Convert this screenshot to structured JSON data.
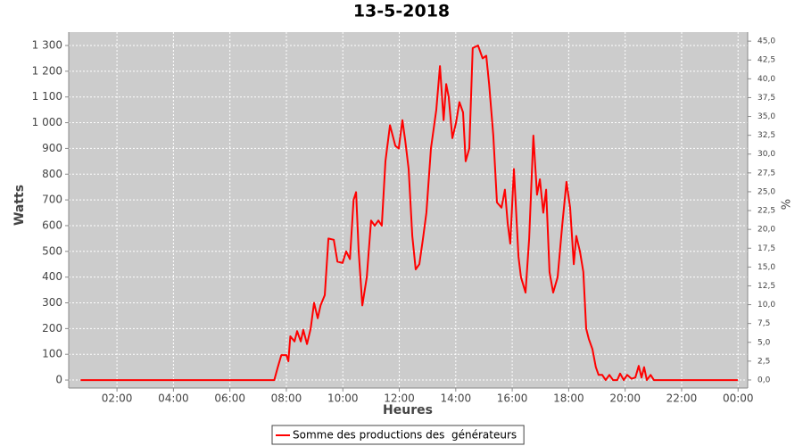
{
  "chart_data": {
    "type": "line",
    "title": "13-5-2018",
    "x_label": "Heures",
    "y_label": "Watts",
    "y2_label": "%",
    "x": [
      0.71,
      7.34,
      7.57,
      7.69,
      7.82,
      8.0,
      8.07,
      8.14,
      8.29,
      8.38,
      8.51,
      8.6,
      8.73,
      8.86,
      8.98,
      9.11,
      9.21,
      9.36,
      9.49,
      9.68,
      9.81,
      9.99,
      10.12,
      10.25,
      10.38,
      10.47,
      10.56,
      10.69,
      10.85,
      11.0,
      11.13,
      11.26,
      11.38,
      11.51,
      11.67,
      11.86,
      11.98,
      12.11,
      12.21,
      12.33,
      12.46,
      12.58,
      12.71,
      12.84,
      12.96,
      13.12,
      13.31,
      13.44,
      13.57,
      13.66,
      13.75,
      13.88,
      14.01,
      14.13,
      14.26,
      14.35,
      14.48,
      14.6,
      14.79,
      14.95,
      15.08,
      15.18,
      15.33,
      15.46,
      15.62,
      15.74,
      15.84,
      15.93,
      16.06,
      16.22,
      16.31,
      16.47,
      16.6,
      16.75,
      16.88,
      16.98,
      17.1,
      17.2,
      17.32,
      17.45,
      17.61,
      17.77,
      17.92,
      18.05,
      18.18,
      18.27,
      18.4,
      18.52,
      18.62,
      18.71,
      18.84,
      18.96,
      19.06,
      19.19,
      19.31,
      19.44,
      19.57,
      19.72,
      19.82,
      19.95,
      20.07,
      20.23,
      20.36,
      20.48,
      20.58,
      20.67,
      20.77,
      20.9,
      21.02,
      23.99
    ],
    "series": [
      {
        "name": "Somme des productions des  générateurs",
        "color": "#ff0000",
        "values": [
          0,
          0,
          0,
          48,
          97,
          97,
          73,
          170,
          150,
          190,
          150,
          195,
          140,
          200,
          300,
          240,
          290,
          330,
          550,
          545,
          460,
          455,
          500,
          470,
          700,
          730,
          500,
          290,
          400,
          620,
          600,
          620,
          600,
          850,
          990,
          910,
          900,
          1010,
          930,
          820,
          560,
          430,
          450,
          550,
          650,
          900,
          1050,
          1220,
          1010,
          1150,
          1100,
          940,
          1000,
          1080,
          1040,
          850,
          900,
          1290,
          1300,
          1250,
          1260,
          1150,
          950,
          690,
          670,
          740,
          610,
          530,
          820,
          480,
          400,
          340,
          550,
          950,
          720,
          780,
          650,
          740,
          420,
          340,
          400,
          600,
          770,
          670,
          450,
          560,
          500,
          420,
          200,
          160,
          120,
          50,
          20,
          20,
          0,
          20,
          0,
          0,
          25,
          0,
          20,
          5,
          10,
          55,
          10,
          50,
          0,
          20,
          0,
          0
        ]
      }
    ],
    "xlim": [
      0.29,
      24.34
    ],
    "xticks": [
      {
        "value": 2,
        "label": "02:00"
      },
      {
        "value": 4,
        "label": "04:00"
      },
      {
        "value": 6,
        "label": "06:00"
      },
      {
        "value": 8,
        "label": "08:00"
      },
      {
        "value": 10,
        "label": "10:00"
      },
      {
        "value": 12,
        "label": "12:00"
      },
      {
        "value": 14,
        "label": "14:00"
      },
      {
        "value": 16,
        "label": "16:00"
      },
      {
        "value": 18,
        "label": "18:00"
      },
      {
        "value": 20,
        "label": "20:00"
      },
      {
        "value": 22,
        "label": "22:00"
      },
      {
        "value": 24,
        "label": "00:00"
      }
    ],
    "ylim": [
      -31,
      1352
    ],
    "yticks": [
      0,
      100,
      200,
      300,
      400,
      500,
      600,
      700,
      800,
      900,
      {
        "value": 1000,
        "label": "1 000"
      },
      {
        "value": 1100,
        "label": "1 100"
      },
      {
        "value": 1200,
        "label": "1 200"
      },
      {
        "value": 1300,
        "label": "1 300"
      }
    ],
    "y2lim": [
      -1.07,
      46.2
    ],
    "y2ticks": [
      {
        "value": 0,
        "label": "0,0"
      },
      {
        "value": 2.5,
        "label": "2,5"
      },
      {
        "value": 5,
        "label": "5,0"
      },
      {
        "value": 7.5,
        "label": "7,5"
      },
      {
        "value": 10,
        "label": "10,0"
      },
      {
        "value": 12.5,
        "label": "12,5"
      },
      {
        "value": 15,
        "label": "15,0"
      },
      {
        "value": 17.5,
        "label": "17,5"
      },
      {
        "value": 20,
        "label": "20,0"
      },
      {
        "value": 22.5,
        "label": "22,5"
      },
      {
        "value": 25,
        "label": "25,0"
      },
      {
        "value": 27.5,
        "label": "27,5"
      },
      {
        "value": 30,
        "label": "30,0"
      },
      {
        "value": 32.5,
        "label": "32,5"
      },
      {
        "value": 35,
        "label": "35,0"
      },
      {
        "value": 37.5,
        "label": "37,5"
      },
      {
        "value": 40,
        "label": "40,0"
      },
      {
        "value": 42.5,
        "label": "42,5"
      },
      {
        "value": 45,
        "label": "45,0"
      }
    ],
    "grid": true,
    "legend": "bottom"
  }
}
